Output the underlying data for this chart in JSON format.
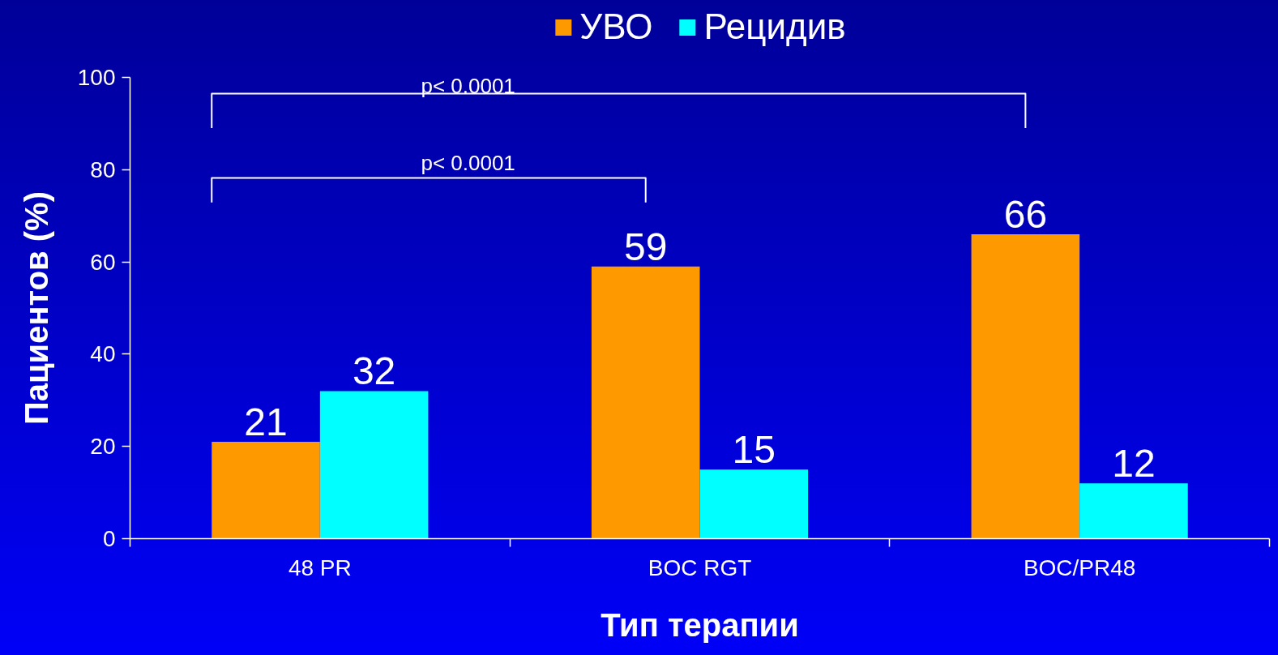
{
  "chart_data": {
    "type": "bar",
    "categories": [
      "48 PR",
      "BOC RGT",
      "BOC/PR48"
    ],
    "series": [
      {
        "name": "УВО",
        "color": "#ff9900",
        "values": [
          21,
          59,
          66
        ]
      },
      {
        "name": "Рецидив",
        "color": "#00ffff",
        "values": [
          32,
          15,
          12
        ]
      }
    ],
    "xlabel": "Тип терапии",
    "ylabel": "Пациентов (%)",
    "ylim": [
      0,
      100
    ],
    "yticks": [
      0,
      20,
      40,
      60,
      80,
      100
    ],
    "data_labels": true,
    "legend": "top",
    "grid": false,
    "annotations": [
      "p< 0.0001",
      "p< 0.0001"
    ]
  }
}
